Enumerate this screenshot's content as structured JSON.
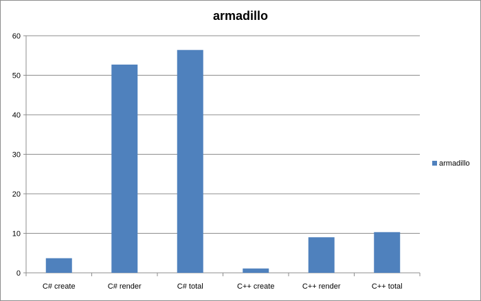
{
  "chart_data": {
    "type": "bar",
    "title": "armadillo",
    "categories": [
      "C# create",
      "C# render",
      "C# total",
      "C++ create",
      "C++ render",
      "C++ total"
    ],
    "series": [
      {
        "name": "armadillo",
        "values": [
          3.7,
          52.7,
          56.4,
          1.1,
          9.0,
          10.3
        ]
      }
    ],
    "ylim": [
      0,
      60
    ],
    "yticks": [
      "0",
      "10",
      "20",
      "30",
      "40",
      "50",
      "60"
    ],
    "grid": true,
    "legend": "right",
    "bar_color": "#4f81bd",
    "grid_color": "#8c8c8c"
  }
}
